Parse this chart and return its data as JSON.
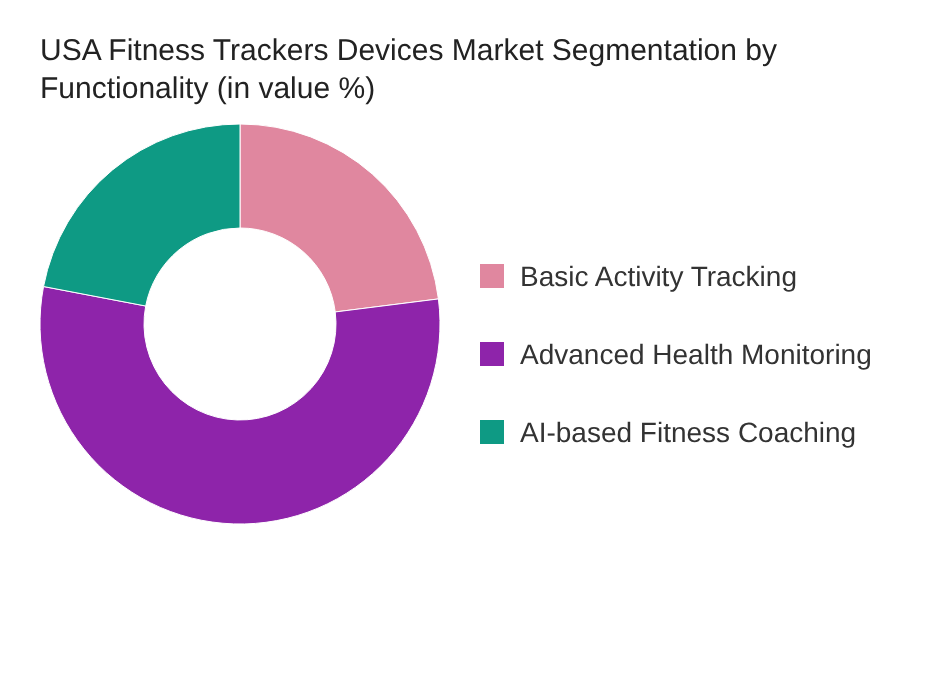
{
  "chart_data": {
    "type": "donut",
    "title": "USA Fitness Trackers Devices Market Segmentation by Functionality (in value %)",
    "categories": [
      "Basic Activity Tracking",
      "Advanced Health Monitoring",
      "AI-based Fitness Coaching"
    ],
    "values": [
      23,
      55,
      22
    ],
    "colors": [
      "#e0879f",
      "#8e24aa",
      "#0e9a84"
    ],
    "legend": "right"
  }
}
